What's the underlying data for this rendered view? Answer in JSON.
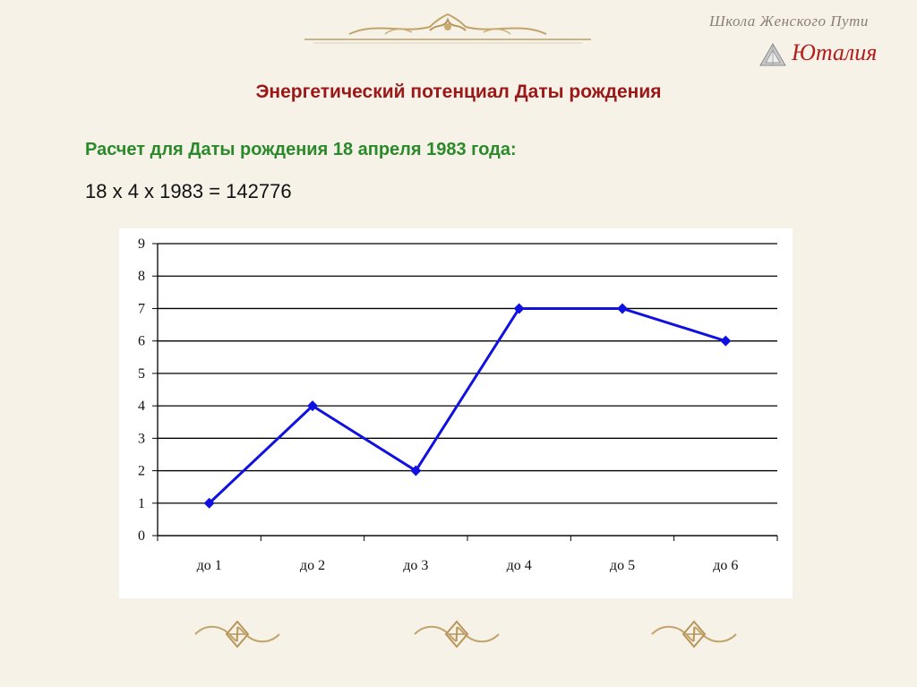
{
  "header": {
    "school": "Школа Женского Пути",
    "brand": "Юталия"
  },
  "slide": {
    "title": "Энергетический потенциал Даты рождения",
    "subtitle": "Расчет для Даты рождения 18 апреля 1983 года:",
    "formula": "18 x 4 x 1983 = 142776"
  },
  "icons": {
    "top": "ornament-border-icon",
    "logo": "crystal-logo-icon",
    "bottom": "ornament-knot-icon"
  },
  "colors": {
    "title": "#9c1717",
    "subtitle": "#2a8a2a",
    "series": "#1010e0",
    "brand": "#b51c1c"
  },
  "chart_data": {
    "type": "line",
    "categories": [
      "до 1",
      "до 2",
      "до 3",
      "до 4",
      "до 5",
      "до 6"
    ],
    "series": [
      {
        "values": [
          1,
          4,
          2,
          7,
          7,
          6
        ]
      }
    ],
    "ylim": [
      0,
      9
    ],
    "yticks": [
      "0",
      "1",
      "2",
      "3",
      "4",
      "5",
      "6",
      "7",
      "8",
      "9"
    ],
    "grid": true,
    "legend": "none",
    "marker": "diamond"
  }
}
